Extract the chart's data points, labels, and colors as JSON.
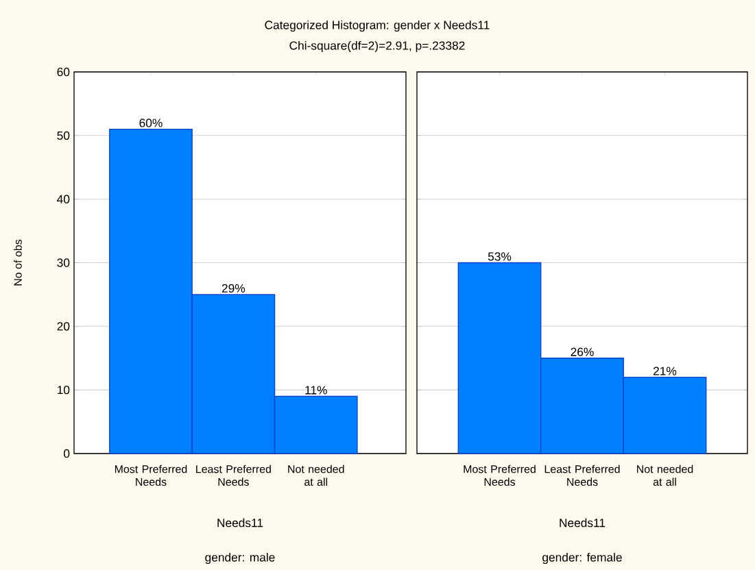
{
  "chart_data": [
    {
      "type": "bar",
      "title": "Categorized Histogram: gender x Needs11",
      "subtitle": "Chi-square(df=2)=2.91, p=.23382",
      "categories": [
        "Most Preferred Needs",
        "Least Preferred Needs",
        "Not needed at all"
      ],
      "values": [
        51,
        25,
        9
      ],
      "color": "#007fff",
      "xlabel": "Needs11",
      "ylabel": "No of obs",
      "annotations": [
        "gender: male",
        {
          "text": "60%",
          "x": "Most Preferred Needs",
          "y": 51
        },
        {
          "text": "29%",
          "x": "Least Preferred Needs",
          "y": 25
        },
        {
          "text": "11%",
          "x": "Not needed at all",
          "y": 9
        }
      ],
      "ylim": [
        0,
        60
      ],
      "yticks": [
        0,
        10,
        20,
        30,
        40,
        50,
        60
      ],
      "grid": "y"
    },
    {
      "type": "bar",
      "categories": [
        "Most Preferred Needs",
        "Least Preferred Needs",
        "Not needed at all"
      ],
      "values": [
        30,
        15,
        12
      ],
      "color": "#007fff",
      "xlabel": "Needs11",
      "annotations": [
        "gender: female",
        {
          "text": "53%",
          "x": "Most Preferred Needs",
          "y": 30
        },
        {
          "text": "26%",
          "x": "Least Preferred Needs",
          "y": 15
        },
        {
          "text": "21%",
          "x": "Not needed at all",
          "y": 12
        }
      ],
      "ylim": [
        0,
        60
      ],
      "yticks": [
        0,
        10,
        20,
        30,
        40,
        50,
        60
      ],
      "grid": "y",
      "tick_labels": "x"
    }
  ]
}
